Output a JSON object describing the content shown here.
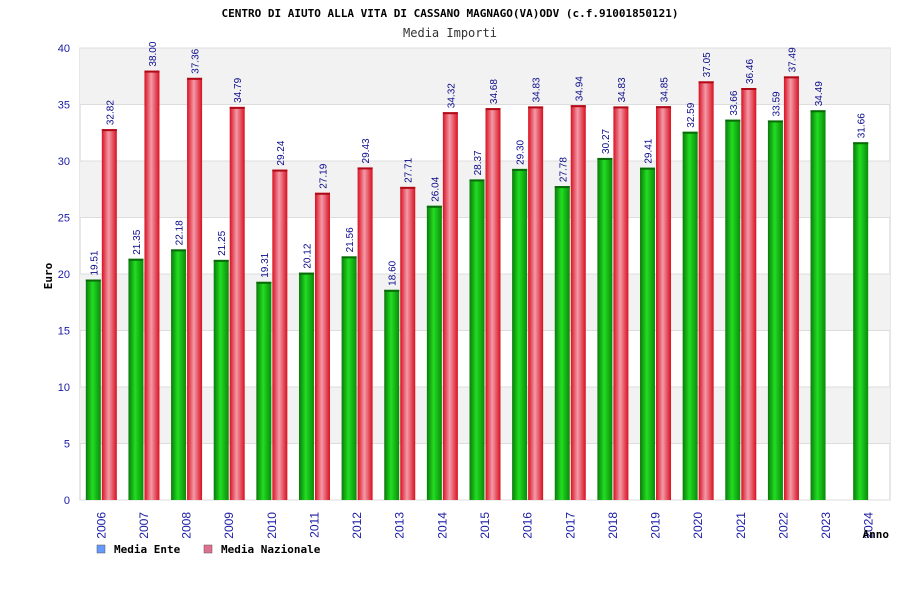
{
  "chart_data": {
    "type": "bar",
    "title": "CENTRO DI AIUTO ALLA VITA DI CASSANO MAGNAGO(VA)ODV (c.f.91001850121)",
    "subtitle": "Media Importi",
    "xlabel": "Anno",
    "ylabel": "Euro",
    "ylim": [
      0,
      40
    ],
    "yticks": [
      0,
      5,
      10,
      15,
      20,
      25,
      30,
      35,
      40
    ],
    "grid": true,
    "categories": [
      "2006",
      "2007",
      "2008",
      "2009",
      "2010",
      "2011",
      "2012",
      "2013",
      "2014",
      "2015",
      "2016",
      "2017",
      "2018",
      "2019",
      "2020",
      "2021",
      "2022",
      "2023",
      "2024"
    ],
    "series": [
      {
        "name": "Media Ente",
        "color": "#10b010",
        "legend_color": "#6699ff",
        "values": [
          19.51,
          21.35,
          22.18,
          21.25,
          19.31,
          20.12,
          21.56,
          18.6,
          26.04,
          28.37,
          29.3,
          27.78,
          30.27,
          29.41,
          32.59,
          33.66,
          33.59,
          34.49,
          31.66
        ],
        "labels": [
          "19.51",
          "21.35",
          "22.18",
          "21.25",
          "19.31",
          "20.12",
          "21.56",
          "18.60",
          "26.04",
          "28.37",
          "29.30",
          "27.78",
          "30.27",
          "29.41",
          "32.59",
          "33.66",
          "33.59",
          "34.49",
          "31.66"
        ]
      },
      {
        "name": "Media Nazionale",
        "color": "#e8202a",
        "legend_color": "#e07090",
        "values": [
          32.82,
          38.0,
          37.36,
          34.79,
          29.24,
          27.19,
          29.43,
          27.71,
          34.32,
          34.68,
          34.83,
          34.94,
          34.83,
          34.85,
          37.05,
          36.46,
          37.49,
          null,
          null
        ],
        "labels": [
          "32.82",
          "38.00",
          "37.36",
          "34.79",
          "29.24",
          "27.19",
          "29.43",
          "27.71",
          "34.32",
          "34.68",
          "34.83",
          "34.94",
          "34.83",
          "34.85",
          "37.05",
          "36.46",
          "37.49",
          "",
          ""
        ]
      }
    ]
  }
}
